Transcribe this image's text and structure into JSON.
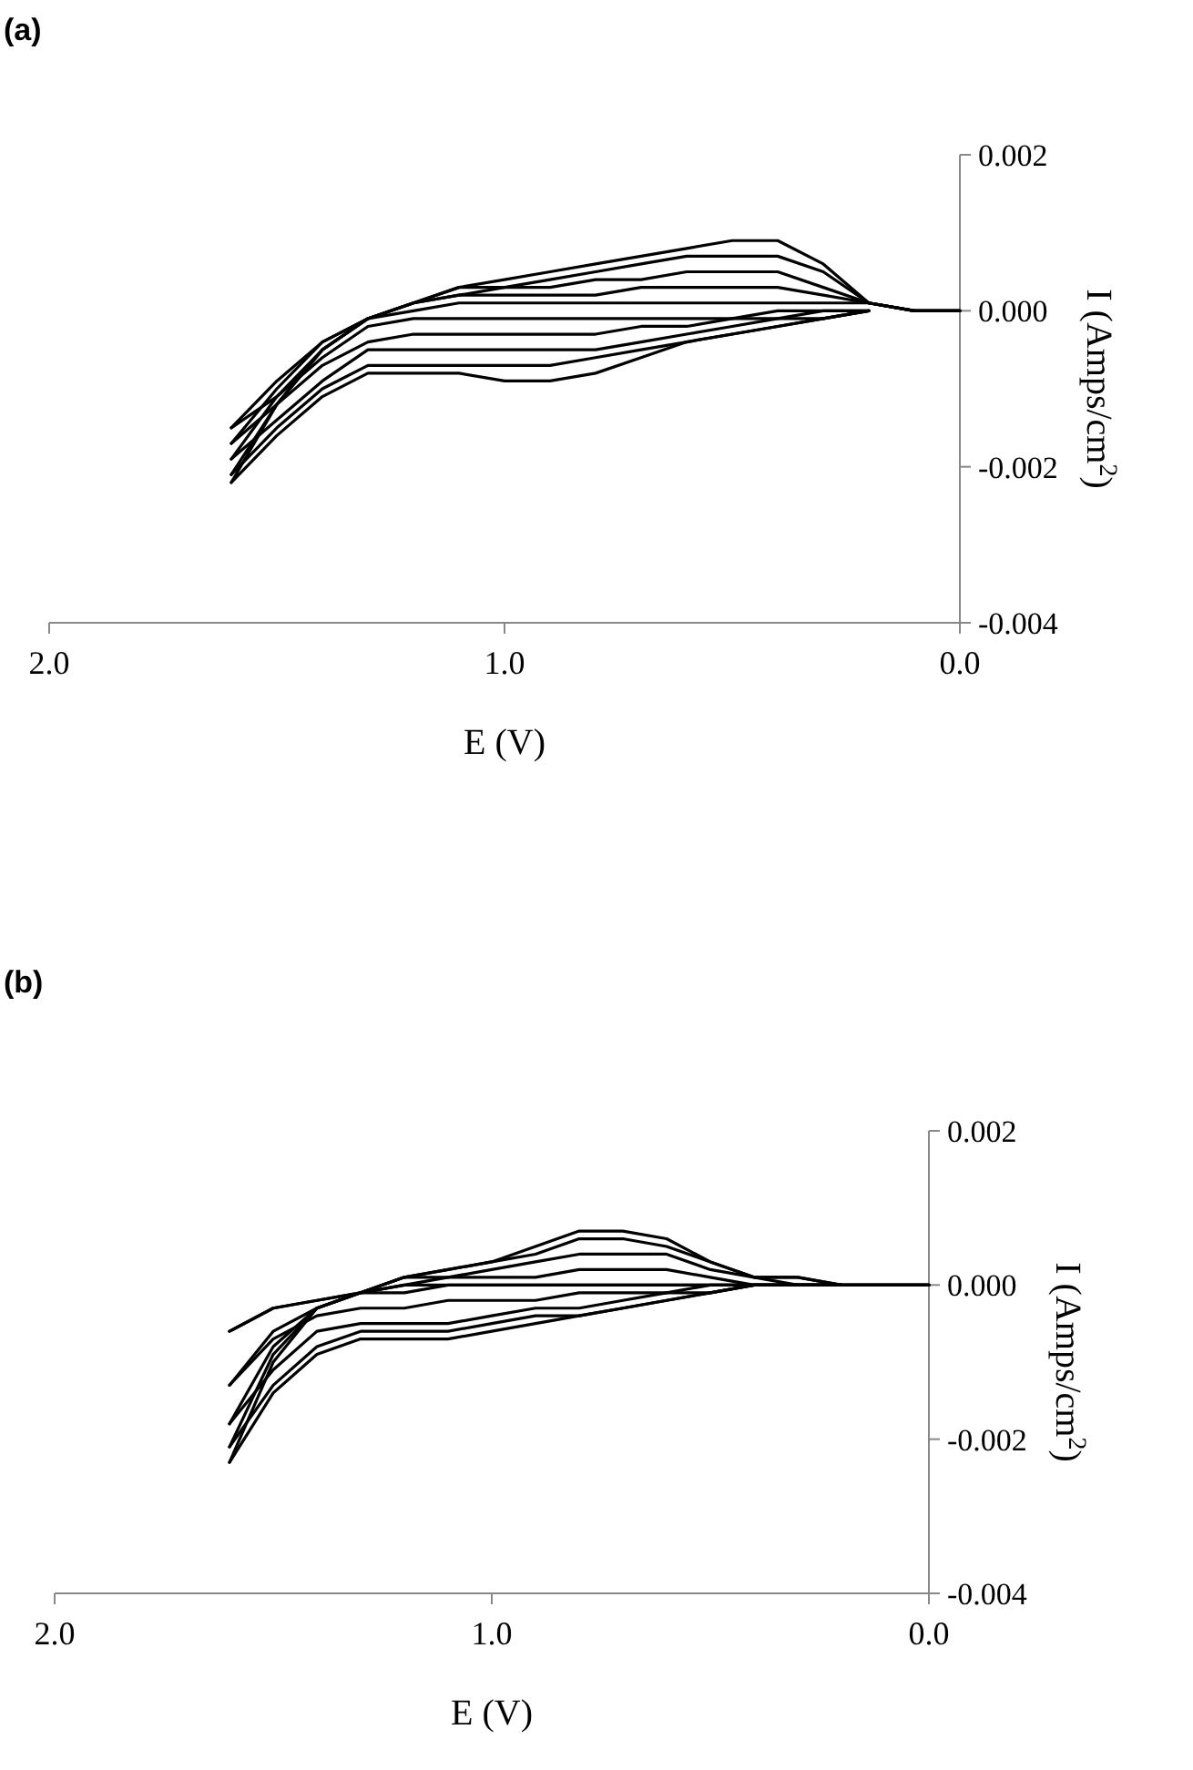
{
  "chart_data": [
    {
      "type": "line",
      "title": "(a)",
      "xlabel": "E (V)",
      "ylabel": "I (Amps/cm$^{2}$)",
      "xlim": [
        2.0,
        0.0
      ],
      "xticks": [
        {
          "value": 2.0,
          "label": "2.0"
        },
        {
          "value": 1.0,
          "label": "1.0"
        },
        {
          "value": 0.0,
          "label": "0.0"
        }
      ],
      "ylim": [
        -0.004,
        0.002
      ],
      "yticks": [
        {
          "value": -0.004,
          "label": "-0.004"
        },
        {
          "value": -0.002,
          "label": "-0.002"
        },
        {
          "value": 0,
          "label": "0.000"
        },
        {
          "value": 0.002,
          "label": "0.002"
        }
      ],
      "grid": false,
      "marker": "none",
      "line_style": "solid",
      "series": [
        {
          "color": "#000000",
          "x": [
            0,
            0.1,
            0.2,
            0.3,
            0.4,
            0.5,
            0.6,
            0.7,
            0.8,
            0.9,
            1.0,
            1.1,
            1.2,
            1.3,
            1.4,
            1.5,
            1.6
          ],
          "values": [
            0,
            0,
            0.0001,
            0.0001,
            0.0001,
            0.0001,
            0.0001,
            0.0001,
            0.0001,
            0.0001,
            0.0001,
            0.0001,
            0,
            -0.0001,
            -0.0004,
            -0.0009,
            -0.0015
          ]
        },
        {
          "color": "#000000",
          "x": [
            1.6,
            1.5,
            1.4,
            1.3,
            1.2,
            1.1,
            1.0,
            0.9,
            0.8,
            0.7,
            0.6,
            0.5,
            0.4,
            0.3,
            0.2
          ],
          "values": [
            -0.0015,
            -0.0011,
            -0.0006,
            -0.0002,
            -0.0001,
            -0.0001,
            -0.0001,
            -0.0001,
            -0.0001,
            -0.0001,
            -0.0001,
            -0.0001,
            0,
            0,
            0
          ]
        },
        {
          "color": "#000000",
          "x": [
            0,
            0.1,
            0.2,
            0.3,
            0.4,
            0.5,
            0.6,
            0.7,
            0.8,
            0.9,
            1.0,
            1.1,
            1.2,
            1.3,
            1.4,
            1.5,
            1.6
          ],
          "values": [
            0,
            0,
            0.0001,
            0.0002,
            0.0003,
            0.0003,
            0.0003,
            0.0003,
            0.0002,
            0.0002,
            0.0002,
            0.0002,
            0.0001,
            -0.0001,
            -0.0004,
            -0.001,
            -0.0017
          ]
        },
        {
          "color": "#000000",
          "x": [
            1.6,
            1.5,
            1.4,
            1.3,
            1.2,
            1.1,
            1.0,
            0.9,
            0.8,
            0.7,
            0.6,
            0.5,
            0.4,
            0.3,
            0.2
          ],
          "values": [
            -0.0017,
            -0.0012,
            -0.0007,
            -0.0004,
            -0.0003,
            -0.0003,
            -0.0003,
            -0.0003,
            -0.0003,
            -0.0002,
            -0.0002,
            -0.0001,
            -0.0001,
            0,
            0
          ]
        },
        {
          "color": "#000000",
          "x": [
            0,
            0.1,
            0.2,
            0.3,
            0.4,
            0.5,
            0.6,
            0.7,
            0.8,
            0.9,
            1.0,
            1.1,
            1.2,
            1.3,
            1.4,
            1.5,
            1.6
          ],
          "values": [
            0,
            0,
            0.0001,
            0.0003,
            0.0005,
            0.0005,
            0.0005,
            0.0004,
            0.0004,
            0.0003,
            0.0003,
            0.0002,
            0.0001,
            -0.0001,
            -0.0005,
            -0.0011,
            -0.0019
          ]
        },
        {
          "color": "#000000",
          "x": [
            1.6,
            1.5,
            1.4,
            1.3,
            1.2,
            1.1,
            1.0,
            0.9,
            0.8,
            0.7,
            0.6,
            0.5,
            0.4,
            0.3,
            0.2
          ],
          "values": [
            -0.0019,
            -0.0014,
            -0.0009,
            -0.0005,
            -0.0005,
            -0.0005,
            -0.0005,
            -0.0005,
            -0.0005,
            -0.0004,
            -0.0003,
            -0.0002,
            -0.0001,
            -0.0001,
            0
          ]
        },
        {
          "color": "#000000",
          "x": [
            0,
            0.1,
            0.2,
            0.3,
            0.4,
            0.5,
            0.6,
            0.7,
            0.8,
            0.9,
            1.0,
            1.1,
            1.2,
            1.3,
            1.4,
            1.5,
            1.6
          ],
          "values": [
            0,
            0,
            0.0001,
            0.0005,
            0.0007,
            0.0007,
            0.0007,
            0.0006,
            0.0005,
            0.0004,
            0.0003,
            0.0003,
            0.0001,
            -0.0001,
            -0.0005,
            -0.0012,
            -0.0021
          ]
        },
        {
          "color": "#000000",
          "x": [
            1.6,
            1.5,
            1.4,
            1.3,
            1.2,
            1.1,
            1.0,
            0.9,
            0.8,
            0.7,
            0.6,
            0.5,
            0.4,
            0.3,
            0.2
          ],
          "values": [
            -0.0021,
            -0.0015,
            -0.001,
            -0.0007,
            -0.0007,
            -0.0007,
            -0.0007,
            -0.0007,
            -0.0006,
            -0.0005,
            -0.0004,
            -0.0003,
            -0.0002,
            -0.0001,
            0
          ]
        },
        {
          "color": "#000000",
          "x": [
            0,
            0.1,
            0.2,
            0.3,
            0.4,
            0.5,
            0.6,
            0.7,
            0.8,
            0.9,
            1.0,
            1.1,
            1.2,
            1.3,
            1.4,
            1.5,
            1.6
          ],
          "values": [
            0,
            0,
            0.0001,
            0.0006,
            0.0009,
            0.0009,
            0.0008,
            0.0007,
            0.0006,
            0.0005,
            0.0004,
            0.0003,
            0.0001,
            -0.0001,
            -0.0005,
            -0.0012,
            -0.0022
          ]
        },
        {
          "color": "#000000",
          "x": [
            1.6,
            1.5,
            1.4,
            1.3,
            1.2,
            1.1,
            1.0,
            0.9,
            0.8,
            0.7,
            0.6,
            0.5,
            0.4,
            0.3,
            0.2
          ],
          "values": [
            -0.0022,
            -0.0016,
            -0.0011,
            -0.0008,
            -0.0008,
            -0.0008,
            -0.0009,
            -0.0009,
            -0.0008,
            -0.0006,
            -0.0004,
            -0.0003,
            -0.0002,
            -0.0001,
            0
          ]
        }
      ]
    },
    {
      "type": "line",
      "title": "(b)",
      "xlabel": "E (V)",
      "ylabel": "I (Amps/cm$^{2}$)",
      "xlim": [
        2.0,
        0.0
      ],
      "xticks": [
        {
          "value": 2.0,
          "label": "2.0"
        },
        {
          "value": 1.0,
          "label": "1.0"
        },
        {
          "value": 0.0,
          "label": "0.0"
        }
      ],
      "ylim": [
        -0.004,
        0.002
      ],
      "yticks": [
        {
          "value": -0.004,
          "label": "-0.004"
        },
        {
          "value": -0.002,
          "label": "-0.002"
        },
        {
          "value": 0,
          "label": "0.000"
        },
        {
          "value": 0.002,
          "label": "0.002"
        }
      ],
      "grid": false,
      "marker": "none",
      "line_style": "solid",
      "series": [
        {
          "color": "#000000",
          "x": [
            0,
            0.1,
            0.2,
            0.3,
            0.4,
            0.5,
            0.6,
            0.7,
            0.8,
            0.9,
            1.0,
            1.1,
            1.2,
            1.3,
            1.4,
            1.5,
            1.6
          ],
          "values": [
            0,
            0,
            0,
            0,
            0,
            0,
            0,
            0,
            0,
            0,
            0,
            0,
            0,
            -0.0001,
            -0.0002,
            -0.0003,
            -0.0006
          ]
        },
        {
          "color": "#000000",
          "x": [
            1.6,
            1.5,
            1.4,
            1.3,
            1.2,
            1.1,
            1.0,
            0.9,
            0.8,
            0.7,
            0.6,
            0.5,
            0.4,
            0.3,
            0.2
          ],
          "values": [
            -0.0006,
            -0.0003,
            -0.0002,
            -0.0001,
            -0.0001,
            0,
            0,
            0,
            0,
            0,
            0,
            0,
            0,
            0,
            0
          ]
        },
        {
          "color": "#000000",
          "x": [
            0,
            0.1,
            0.2,
            0.3,
            0.4,
            0.5,
            0.6,
            0.7,
            0.8,
            0.9,
            1.0,
            1.1,
            1.2,
            1.3,
            1.4,
            1.5,
            1.6
          ],
          "values": [
            0,
            0,
            0,
            0,
            0,
            0.0001,
            0.0002,
            0.0002,
            0.0002,
            0.0001,
            0.0001,
            0.0001,
            0,
            -0.0001,
            -0.0003,
            -0.0006,
            -0.0013
          ]
        },
        {
          "color": "#000000",
          "x": [
            1.6,
            1.5,
            1.4,
            1.3,
            1.2,
            1.1,
            1.0,
            0.9,
            0.8,
            0.7,
            0.6,
            0.5,
            0.4,
            0.3,
            0.2
          ],
          "values": [
            -0.0013,
            -0.0007,
            -0.0004,
            -0.0003,
            -0.0003,
            -0.0002,
            -0.0002,
            -0.0002,
            -0.0001,
            -0.0001,
            -0.0001,
            0,
            0,
            0,
            0
          ]
        },
        {
          "color": "#000000",
          "x": [
            0,
            0.1,
            0.2,
            0.3,
            0.4,
            0.5,
            0.6,
            0.7,
            0.8,
            0.9,
            1.0,
            1.1,
            1.2,
            1.3,
            1.4,
            1.5,
            1.6
          ],
          "values": [
            0,
            0,
            0,
            0,
            0.0001,
            0.0002,
            0.0004,
            0.0004,
            0.0004,
            0.0003,
            0.0002,
            0.0001,
            0.0001,
            -0.0001,
            -0.0003,
            -0.0008,
            -0.0018
          ]
        },
        {
          "color": "#000000",
          "x": [
            1.6,
            1.5,
            1.4,
            1.3,
            1.2,
            1.1,
            1.0,
            0.9,
            0.8,
            0.7,
            0.6,
            0.5,
            0.4,
            0.3,
            0.2
          ],
          "values": [
            -0.0018,
            -0.0011,
            -0.0006,
            -0.0005,
            -0.0005,
            -0.0005,
            -0.0004,
            -0.0003,
            -0.0003,
            -0.0002,
            -0.0001,
            -0.0001,
            0,
            0,
            0
          ]
        },
        {
          "color": "#000000",
          "x": [
            0,
            0.1,
            0.2,
            0.3,
            0.4,
            0.5,
            0.6,
            0.7,
            0.8,
            0.9,
            1.0,
            1.1,
            1.2,
            1.3,
            1.4,
            1.5,
            1.6
          ],
          "values": [
            0,
            0,
            0,
            0.0001,
            0.0001,
            0.0003,
            0.0005,
            0.0006,
            0.0006,
            0.0004,
            0.0003,
            0.0002,
            0.0001,
            -0.0001,
            -0.0003,
            -0.0009,
            -0.0021
          ]
        },
        {
          "color": "#000000",
          "x": [
            1.6,
            1.5,
            1.4,
            1.3,
            1.2,
            1.1,
            1.0,
            0.9,
            0.8,
            0.7,
            0.6,
            0.5,
            0.4,
            0.3,
            0.2
          ],
          "values": [
            -0.0021,
            -0.0013,
            -0.0008,
            -0.0006,
            -0.0006,
            -0.0006,
            -0.0005,
            -0.0004,
            -0.0004,
            -0.0003,
            -0.0002,
            -0.0001,
            0,
            0,
            0
          ]
        },
        {
          "color": "#000000",
          "x": [
            0,
            0.1,
            0.2,
            0.3,
            0.4,
            0.5,
            0.6,
            0.7,
            0.8,
            0.9,
            1.0,
            1.1,
            1.2,
            1.3,
            1.4,
            1.5,
            1.6
          ],
          "values": [
            0,
            0,
            0,
            0.0001,
            0.0001,
            0.0003,
            0.0006,
            0.0007,
            0.0007,
            0.0005,
            0.0003,
            0.0002,
            0.0001,
            -0.0001,
            -0.0003,
            -0.001,
            -0.0023
          ]
        },
        {
          "color": "#000000",
          "x": [
            1.6,
            1.5,
            1.4,
            1.3,
            1.2,
            1.1,
            1.0,
            0.9,
            0.8,
            0.7,
            0.6,
            0.5,
            0.4,
            0.3,
            0.2
          ],
          "values": [
            -0.0023,
            -0.0014,
            -0.0009,
            -0.0007,
            -0.0007,
            -0.0007,
            -0.0006,
            -0.0005,
            -0.0004,
            -0.0003,
            -0.0002,
            -0.0001,
            0,
            0,
            0
          ]
        }
      ]
    }
  ]
}
